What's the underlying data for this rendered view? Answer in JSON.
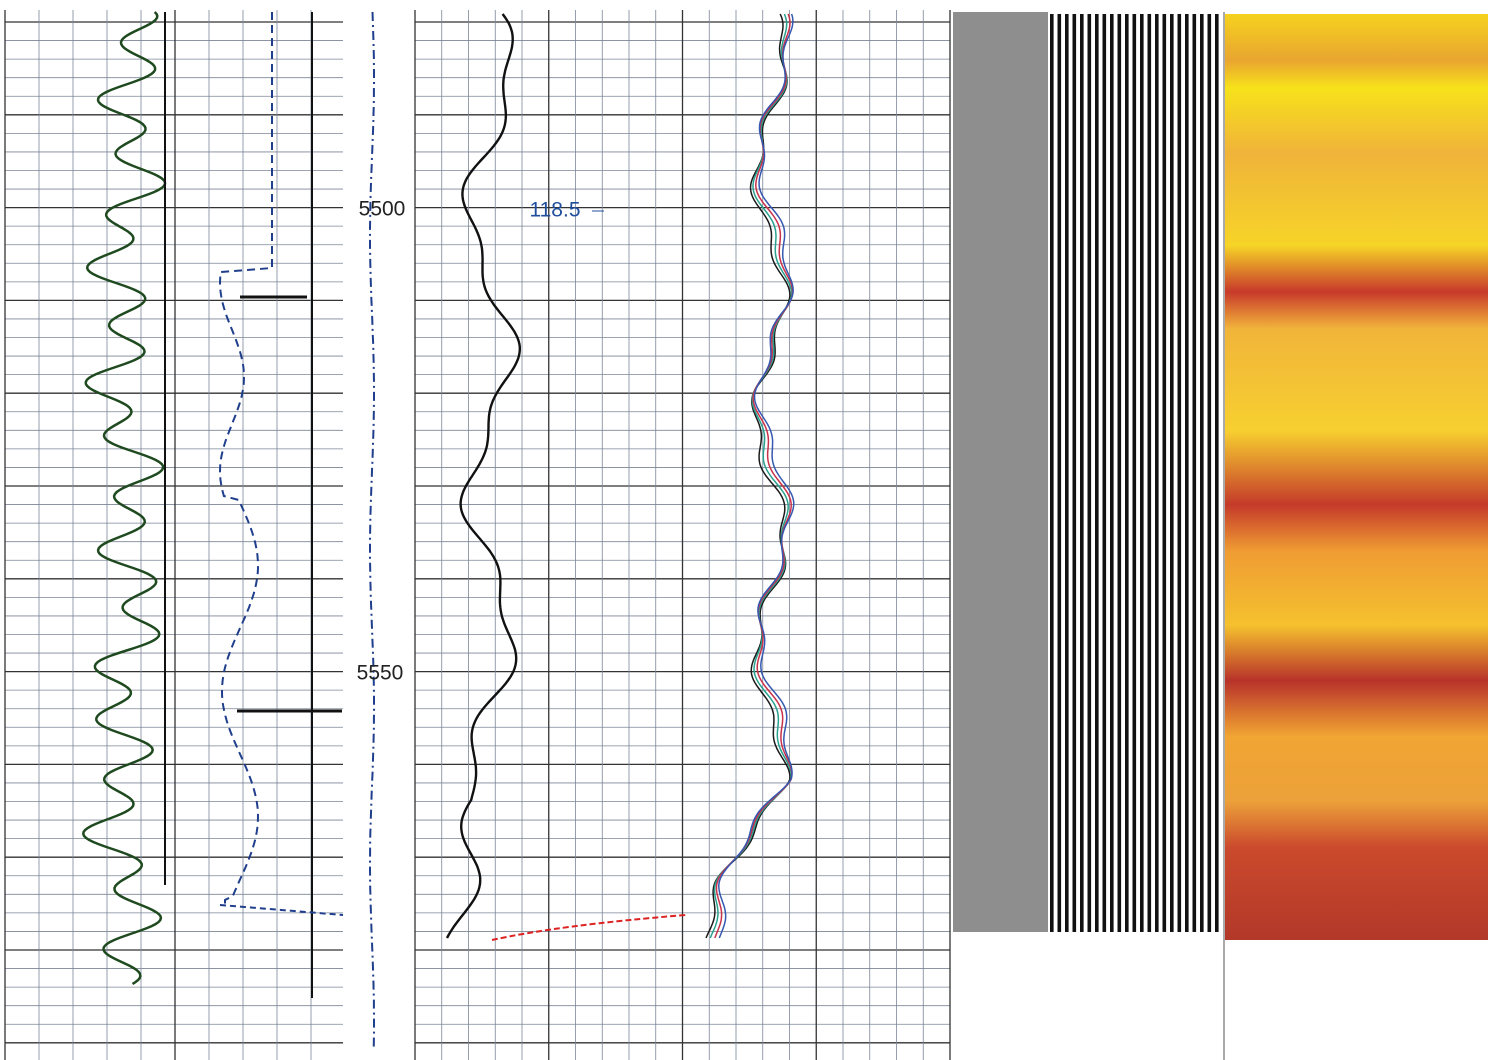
{
  "depth_labels": [
    "5500",
    "5550"
  ],
  "annotation": "118.5"
}
